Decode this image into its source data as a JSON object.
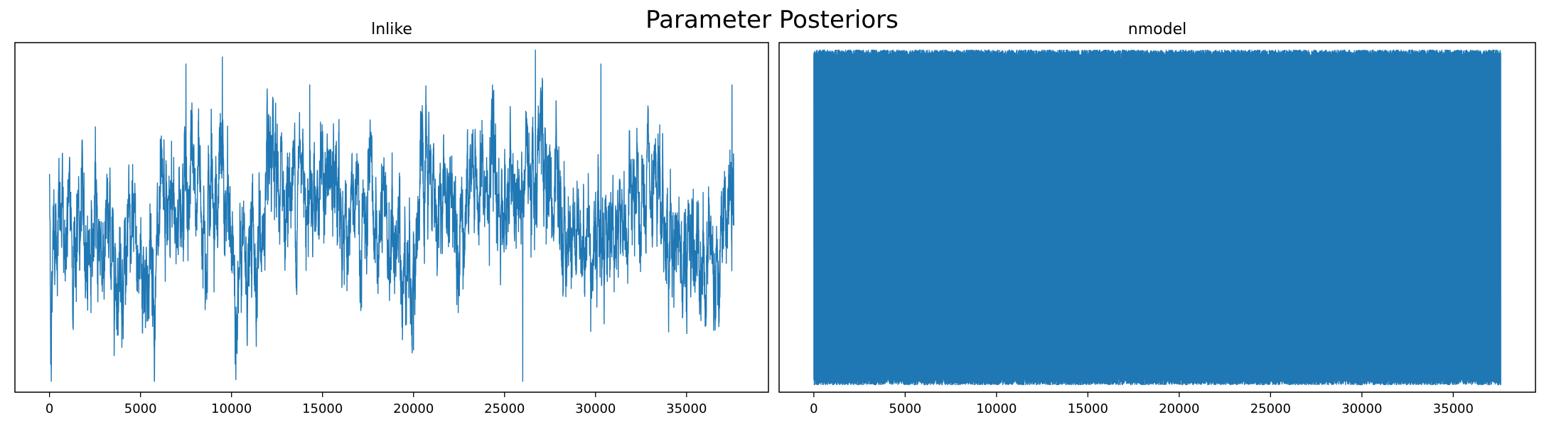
{
  "figure": {
    "title": "Parameter Posteriors"
  },
  "chart_data": [
    {
      "type": "line",
      "title": "lnlike",
      "xlabel": "",
      "ylabel": "",
      "xlim": [
        -1900,
        39500
      ],
      "ylim": [
        0,
        1
      ],
      "x_ticks": [
        0,
        5000,
        10000,
        15000,
        20000,
        25000,
        30000,
        35000
      ],
      "y_ticks": [],
      "grid": false,
      "color": "#1f77b4",
      "n_samples": 37600,
      "trace": {
        "style": "random-walk",
        "anchors": [
          [
            0,
            0.6
          ],
          [
            100,
            0.15
          ],
          [
            200,
            0.55
          ],
          [
            700,
            0.45
          ],
          [
            2500,
            0.45
          ],
          [
            5800,
            0.35
          ],
          [
            7500,
            0.6
          ],
          [
            9500,
            0.58
          ],
          [
            10300,
            0.3
          ],
          [
            12500,
            0.55
          ],
          [
            14300,
            0.65
          ],
          [
            17000,
            0.45
          ],
          [
            20000,
            0.4
          ],
          [
            20500,
            0.55
          ],
          [
            24000,
            0.58
          ],
          [
            26000,
            0.52
          ],
          [
            26700,
            0.75
          ],
          [
            28000,
            0.45
          ],
          [
            33000,
            0.5
          ],
          [
            36500,
            0.4
          ],
          [
            37600,
            0.55
          ]
        ],
        "spikes": [
          [
            26700,
            0.98
          ],
          [
            26000,
            0.03
          ],
          [
            9500,
            0.96
          ],
          [
            7500,
            0.94
          ],
          [
            100,
            0.03
          ],
          [
            20000,
            0.12
          ],
          [
            10300,
            0.15
          ],
          [
            30300,
            0.94
          ],
          [
            14300,
            0.88
          ],
          [
            37500,
            0.88
          ]
        ]
      }
    },
    {
      "type": "line",
      "title": "nmodel",
      "xlabel": "",
      "ylabel": "",
      "xlim": [
        -1900,
        39500
      ],
      "ylim": [
        0,
        1
      ],
      "x_ticks": [
        0,
        5000,
        10000,
        15000,
        20000,
        25000,
        30000,
        35000
      ],
      "y_ticks": [],
      "grid": false,
      "color": "#1f77b4",
      "n_samples": 37600,
      "trace": {
        "style": "fast-mixing",
        "low": 0.02,
        "high": 0.98,
        "start_x": 0
      }
    }
  ]
}
